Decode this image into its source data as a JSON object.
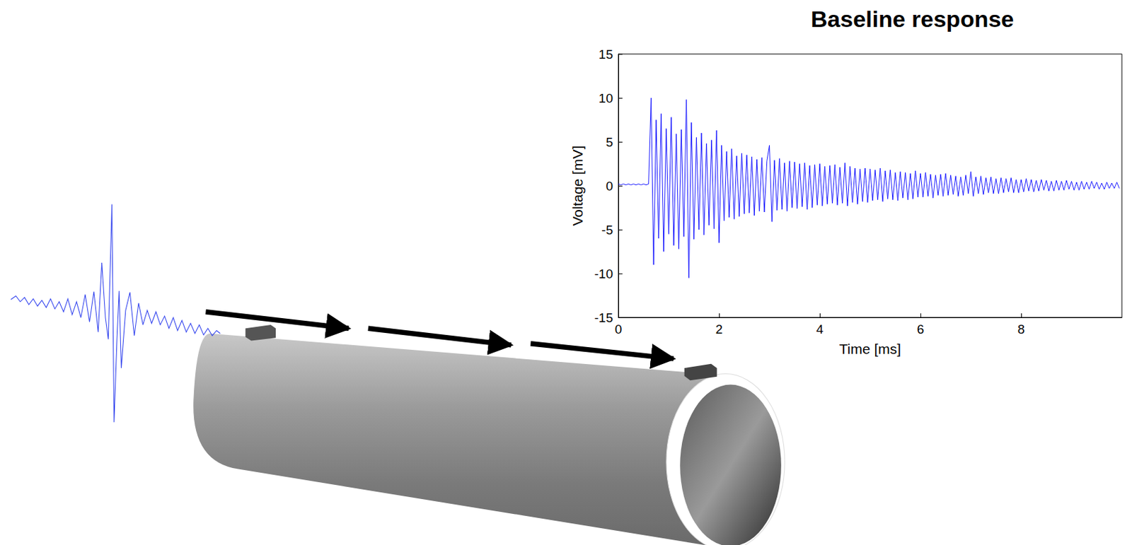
{
  "chart_data": {
    "type": "line",
    "title": "Baseline response",
    "xlabel": "Time [ms]",
    "ylabel": "Voltage [mV]",
    "color": "#0000ff",
    "xlim": [
      0,
      10
    ],
    "ylim": [
      -15,
      15
    ],
    "xticks": [
      0,
      2,
      4,
      6,
      8
    ],
    "yticks": [
      -15,
      -10,
      -5,
      0,
      5,
      10,
      15
    ],
    "grid": false,
    "x": [
      0,
      0.05,
      0.1,
      0.15,
      0.2,
      0.25,
      0.3,
      0.35,
      0.4,
      0.45,
      0.5,
      0.55,
      0.6,
      0.65,
      0.7,
      0.75,
      0.8,
      0.85,
      0.9,
      0.95,
      1,
      1.05,
      1.1,
      1.15,
      1.2,
      1.25,
      1.3,
      1.35,
      1.4,
      1.45,
      1.5,
      1.55,
      1.6,
      1.65,
      1.7,
      1.75,
      1.8,
      1.85,
      1.9,
      1.95,
      2,
      2.05,
      2.1,
      2.15,
      2.2,
      2.25,
      2.3,
      2.35,
      2.4,
      2.45,
      2.5,
      2.55,
      2.6,
      2.65,
      2.7,
      2.75,
      2.8,
      2.85,
      2.9,
      2.95,
      3,
      3.05,
      3.1,
      3.15,
      3.2,
      3.25,
      3.3,
      3.35,
      3.4,
      3.45,
      3.5,
      3.55,
      3.6,
      3.65,
      3.7,
      3.75,
      3.8,
      3.85,
      3.9,
      3.95,
      4,
      4.05,
      4.1,
      4.15,
      4.2,
      4.25,
      4.3,
      4.35,
      4.4,
      4.45,
      4.5,
      4.55,
      4.6,
      4.65,
      4.7,
      4.75,
      4.8,
      4.85,
      4.9,
      4.95,
      5,
      5.05,
      5.1,
      5.15,
      5.2,
      5.25,
      5.3,
      5.35,
      5.4,
      5.45,
      5.5,
      5.55,
      5.6,
      5.65,
      5.7,
      5.75,
      5.8,
      5.85,
      5.9,
      5.95,
      6,
      6.05,
      6.1,
      6.15,
      6.2,
      6.25,
      6.3,
      6.35,
      6.4,
      6.45,
      6.5,
      6.55,
      6.6,
      6.65,
      6.7,
      6.75,
      6.8,
      6.85,
      6.9,
      6.95,
      7,
      7.05,
      7.1,
      7.15,
      7.2,
      7.25,
      7.3,
      7.35,
      7.4,
      7.45,
      7.5,
      7.55,
      7.6,
      7.65,
      7.7,
      7.75,
      7.8,
      7.85,
      7.9,
      7.95,
      8,
      8.05,
      8.1,
      8.15,
      8.2,
      8.25,
      8.3,
      8.35,
      8.4,
      8.45,
      8.5,
      8.55,
      8.6,
      8.65,
      8.7,
      8.75,
      8.8,
      8.85,
      8.9,
      8.95,
      9,
      9.05,
      9.1,
      9.15,
      9.2,
      9.25,
      9.3,
      9.35,
      9.4,
      9.45,
      9.5,
      9.55,
      9.6,
      9.65,
      9.7,
      9.75,
      9.8,
      9.85,
      9.9,
      9.95
    ],
    "values": [
      0.2,
      0.1,
      0.2,
      0.1,
      0.2,
      0.1,
      0.2,
      0.1,
      0.2,
      0.1,
      0.2,
      0.1,
      0.2,
      10.0,
      -9.0,
      7.5,
      -6.0,
      8.2,
      -7.5,
      6.5,
      -5.5,
      7.8,
      -6.8,
      5.9,
      -7.2,
      6.4,
      -5.8,
      9.8,
      -10.5,
      7.2,
      -6.1,
      5.5,
      -5.0,
      6.0,
      -5.6,
      4.8,
      -4.5,
      5.2,
      -4.9,
      6.3,
      -6.5,
      4.6,
      -4.0,
      3.9,
      -3.6,
      4.2,
      -3.8,
      3.4,
      -3.5,
      3.7,
      -3.2,
      3.5,
      -3.1,
      3.3,
      -3.4,
      3.0,
      -2.9,
      3.2,
      -3.0,
      2.8,
      4.6,
      -4.1,
      2.9,
      -2.8,
      3.1,
      -2.7,
      2.6,
      -2.9,
      2.8,
      -2.5,
      2.7,
      -2.6,
      2.5,
      -2.4,
      2.6,
      -2.7,
      2.3,
      -2.5,
      2.4,
      -2.2,
      2.5,
      -2.3,
      2.2,
      -2.1,
      2.3,
      -2.0,
      2.4,
      -2.2,
      2.1,
      -2.0,
      2.6,
      -2.3,
      2.2,
      -1.9,
      2.0,
      -2.1,
      1.9,
      -1.8,
      2.0,
      -1.9,
      1.9,
      -1.7,
      1.8,
      -1.6,
      2.0,
      -1.8,
      1.7,
      -1.5,
      1.8,
      -1.6,
      1.5,
      -1.7,
      1.6,
      -1.4,
      1.5,
      -1.6,
      1.4,
      -1.5,
      1.7,
      -1.3,
      1.4,
      -1.3,
      1.5,
      -1.2,
      1.3,
      -1.4,
      1.2,
      -1.1,
      1.3,
      -1.2,
      1.4,
      -1.1,
      1.2,
      -1.0,
      1.1,
      -1.2,
      1.0,
      -1.1,
      1.2,
      -0.9,
      1.6,
      -1.2,
      1.0,
      -0.9,
      1.1,
      -1.0,
      0.9,
      -0.8,
      1.0,
      -0.9,
      0.8,
      -0.9,
      0.9,
      -0.8,
      0.8,
      -0.7,
      0.9,
      -0.8,
      0.7,
      -0.8,
      0.7,
      -0.7,
      0.8,
      -0.6,
      0.7,
      -0.7,
      0.6,
      -0.6,
      0.7,
      -0.5,
      0.6,
      -0.6,
      0.5,
      -0.6,
      0.6,
      -0.5,
      0.5,
      -0.5,
      0.6,
      -0.4,
      0.5,
      -0.5,
      0.4,
      -0.5,
      0.5,
      -0.4,
      0.4,
      -0.4,
      0.5,
      -0.3,
      0.4,
      -0.4,
      0.3,
      -0.4,
      0.4,
      -0.3,
      0.3,
      -0.3,
      0.4,
      -0.3
    ]
  }
}
